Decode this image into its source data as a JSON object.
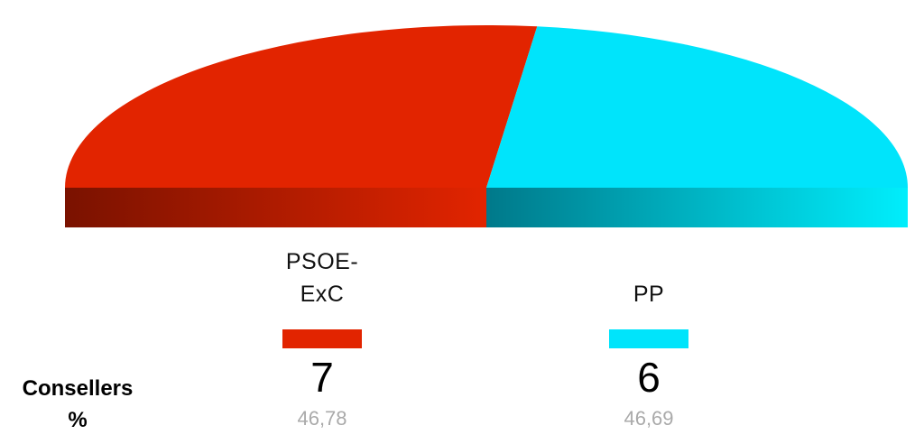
{
  "chart_data": {
    "type": "pie",
    "style": "3d-half-pie",
    "row_labels": {
      "seats": "Consellers",
      "percent": "%"
    },
    "series": [
      {
        "name": "PSOE-\nExC",
        "name_lines": [
          "PSOE-",
          "ExC"
        ],
        "seats": 7,
        "percent": "46,78",
        "color": "#e22400"
      },
      {
        "name": "PP",
        "name_lines": [
          "PP"
        ],
        "seats": 6,
        "percent": "46,69",
        "color": "#00e4fb"
      }
    ]
  }
}
